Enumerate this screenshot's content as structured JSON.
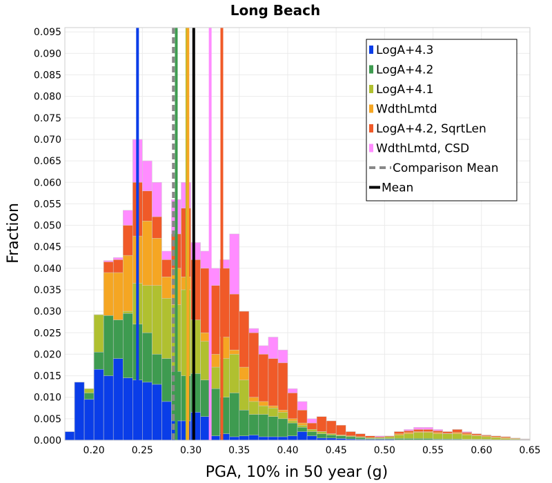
{
  "chart_data": {
    "type": "bar",
    "title": "Long Beach",
    "xlabel": "PGA, 10% in 50 year (g)",
    "ylabel": "Fraction",
    "xlim": [
      0.17,
      0.65
    ],
    "ylim": [
      0,
      0.096
    ],
    "grid": true,
    "legend_placement": "top-right",
    "x_ticks": [
      "0.20",
      "0.25",
      "0.30",
      "0.35",
      "0.40",
      "0.45",
      "0.50",
      "0.55",
      "0.60",
      "0.65"
    ],
    "y_ticks": [
      "0.000",
      "0.005",
      "0.010",
      "0.015",
      "0.020",
      "0.025",
      "0.030",
      "0.035",
      "0.040",
      "0.045",
      "0.050",
      "0.055",
      "0.060",
      "0.065",
      "0.070",
      "0.075",
      "0.080",
      "0.085",
      "0.090",
      "0.095"
    ],
    "bin_width": 0.01,
    "bin_starts": [
      0.17,
      0.18,
      0.19,
      0.2,
      0.21,
      0.22,
      0.23,
      0.24,
      0.25,
      0.26,
      0.27,
      0.28,
      0.29,
      0.3,
      0.31,
      0.32,
      0.33,
      0.34,
      0.35,
      0.36,
      0.37,
      0.38,
      0.39,
      0.4,
      0.41,
      0.42,
      0.43,
      0.44,
      0.45,
      0.46,
      0.47,
      0.48,
      0.49,
      0.5,
      0.51,
      0.52,
      0.53,
      0.54,
      0.55,
      0.56,
      0.57,
      0.58,
      0.59,
      0.6,
      0.61,
      0.62,
      0.63,
      0.64
    ],
    "series": [
      {
        "name": "WdthLmtd, CSD",
        "color": "#ff8cff",
        "bins_start": 0.18,
        "values": [
          0.0135,
          0.012,
          0.0292,
          0.0418,
          0.0425,
          0.0535,
          0.07,
          0.065,
          0.06,
          0.044,
          0.056,
          0.06,
          0.046,
          0.044,
          0.04,
          0.042,
          0.048,
          0.03,
          0.026,
          0.022,
          0.024,
          0.021,
          0.012,
          0.009,
          0.005,
          0.004,
          0.0035,
          0.002,
          0.002,
          0.0015,
          0.001,
          0.001,
          0.001,
          0.002,
          0.0025,
          0.003,
          0.003,
          0.0025,
          0.002,
          0.0025,
          0.002,
          0.0015,
          0.0012,
          0.001,
          0.0008,
          0.0005,
          0.0003
        ]
      },
      {
        "name": "LogA+4.2, SqrtLen",
        "color": "#f05a28",
        "bins_start": 0.18,
        "values": [
          0.0135,
          0.012,
          0.0292,
          0.0415,
          0.042,
          0.05,
          0.06,
          0.058,
          0.052,
          0.042,
          0.048,
          0.054,
          0.042,
          0.04,
          0.036,
          0.04,
          0.034,
          0.03,
          0.025,
          0.02,
          0.019,
          0.018,
          0.011,
          0.007,
          0.004,
          0.0055,
          0.0045,
          0.0035,
          0.002,
          0.0015,
          0.001,
          0.0008,
          0.001,
          0.002,
          0.0022,
          0.0025,
          0.0025,
          0.0022,
          0.002,
          0.0025,
          0.0018,
          0.0015,
          0.0012,
          0.001,
          0.0008,
          0.0005,
          0.0003
        ]
      },
      {
        "name": "WdthLmtd",
        "color": "#f5a623",
        "bins_start": 0.18,
        "values": [
          0.0135,
          0.012,
          0.0292,
          0.039,
          0.039,
          0.043,
          0.0475,
          0.051,
          0.047,
          0.038,
          0.04,
          0.038,
          0.024,
          0.025,
          0.02,
          0.024,
          0.021,
          0.017,
          0.01,
          0.009,
          0.008,
          0.007,
          0.005,
          0.004,
          0.002,
          0.002,
          0.0015,
          0.0012,
          0.001,
          0.0008,
          0.0006,
          0.0006,
          0.0008,
          0.0015,
          0.0018,
          0.002,
          0.002,
          0.0018,
          0.0016,
          0.0018,
          0.0015,
          0.0012,
          0.001,
          0.0008,
          0.0006,
          0.0004,
          0.0002
        ]
      },
      {
        "name": "LogA+4.1",
        "color": "#b0c030",
        "bins_start": 0.18,
        "values": [
          0.0135,
          0.012,
          0.0292,
          0.0285,
          0.025,
          0.03,
          0.0365,
          0.036,
          0.036,
          0.033,
          0.0315,
          0.035,
          0.028,
          0.023,
          0.017,
          0.019,
          0.02,
          0.014,
          0.009,
          0.008,
          0.0075,
          0.0065,
          0.0045,
          0.0035,
          0.0025,
          0.002,
          0.0015,
          0.0012,
          0.001,
          0.0008,
          0.0006,
          0.0006,
          0.0008,
          0.0012,
          0.0015,
          0.0018,
          0.0018,
          0.0015,
          0.0015,
          0.0015,
          0.0012,
          0.001,
          0.0008,
          0.0006,
          0.0004,
          0.0003,
          0.0001
        ]
      },
      {
        "name": "LogA+4.2",
        "color": "#3e9b50",
        "bins_start": 0.18,
        "values": [
          0.013,
          0.011,
          0.0205,
          0.029,
          0.028,
          0.0295,
          0.027,
          0.025,
          0.02,
          0.019,
          0.016,
          0.015,
          0.0155,
          0.014,
          0.012,
          0.01,
          0.011,
          0.007,
          0.006,
          0.006,
          0.0055,
          0.005,
          0.004,
          0.003,
          0.002,
          0.0015,
          0.0012,
          0.001,
          0.0008,
          0.0006,
          0.0004,
          0.0004,
          0.0004,
          0.0004,
          0.0004,
          0.0004,
          0.0004,
          0.0003,
          0.0003,
          0.0003,
          0.0002,
          0.0002,
          0.0002,
          0.0001,
          0.0001,
          0.0001,
          0.0001
        ]
      },
      {
        "name": "LogA+4.3",
        "color": "#0a3de8",
        "bins_start": 0.17,
        "values": [
          0.002,
          0.0135,
          0.0095,
          0.0165,
          0.015,
          0.019,
          0.0145,
          0.014,
          0.0135,
          0.013,
          0.009,
          0.0045,
          0.0045,
          0.0065,
          0.0055,
          0.001,
          0.0015,
          0.0008,
          0.001,
          0.0012,
          0.0008,
          0.0008,
          0.0008,
          0.001,
          0.002,
          0.001,
          0.0005,
          0.0005,
          0.0004,
          0.0003,
          0.0002,
          0.0002,
          0.0002,
          0.0002,
          0.0001,
          0.0001,
          0.0001,
          0.0001,
          0.0001,
          0.0001,
          0.0001,
          0.0001,
          0.0001,
          0.0001,
          0.0001,
          0.0001,
          0.0001,
          0.0001
        ]
      }
    ],
    "mean_lines": [
      {
        "name": "LogA+4.3",
        "color": "#0a3de8",
        "x": 0.245
      },
      {
        "name": "LogA+4.2",
        "color": "#3e9b50",
        "x": 0.285
      },
      {
        "name": "LogA+4.1",
        "color": "#b0c030",
        "x": 0.296
      },
      {
        "name": "WdthLmtd",
        "color": "#f5a623",
        "x": 0.297
      },
      {
        "name": "LogA+4.2, SqrtLen",
        "color": "#f05a28",
        "x": 0.332
      },
      {
        "name": "WdthLmtd, CSD",
        "color": "#ff8cff",
        "x": 0.32
      }
    ],
    "comparison_mean": {
      "name": "Comparison Mean",
      "color": "#888888",
      "x": 0.282
    },
    "mean": {
      "name": "Mean",
      "color": "#000000",
      "x": 0.303
    },
    "legend": [
      {
        "label": "LogA+4.3",
        "color": "#0a3de8",
        "kind": "bar"
      },
      {
        "label": "LogA+4.2",
        "color": "#3e9b50",
        "kind": "bar"
      },
      {
        "label": "LogA+4.1",
        "color": "#b0c030",
        "kind": "bar"
      },
      {
        "label": "WdthLmtd",
        "color": "#f5a623",
        "kind": "bar"
      },
      {
        "label": "LogA+4.2, SqrtLen",
        "color": "#f05a28",
        "kind": "bar"
      },
      {
        "label": "WdthLmtd, CSD",
        "color": "#ff8cff",
        "kind": "bar"
      },
      {
        "label": "Comparison Mean",
        "color": "#888888",
        "kind": "dashed"
      },
      {
        "label": "Mean",
        "color": "#000000",
        "kind": "solid"
      }
    ]
  }
}
